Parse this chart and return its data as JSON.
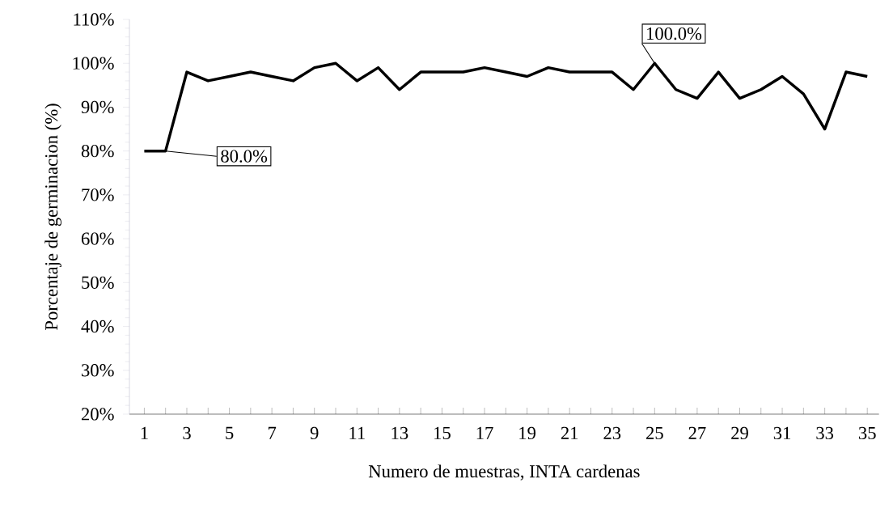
{
  "chart_data": {
    "type": "line",
    "xlabel": "Numero de muestras, INTA cardenas",
    "ylabel": "Porcentaje de germinacion (%)",
    "categories": [
      "1",
      null,
      "3",
      null,
      "5",
      null,
      "7",
      null,
      "9",
      null,
      "11",
      null,
      "13",
      null,
      "15",
      null,
      "17",
      null,
      "19",
      null,
      "21",
      null,
      "23",
      null,
      "25",
      null,
      "27",
      null,
      "29",
      null,
      "31",
      null,
      "33",
      null,
      "35"
    ],
    "series": [
      {
        "color": "#000000",
        "values": [
          80,
          80,
          98,
          96,
          97,
          98,
          97,
          96,
          99,
          100,
          96,
          99,
          94,
          98,
          98,
          98,
          99,
          98,
          97,
          99,
          98,
          98,
          98,
          94,
          100,
          94,
          92,
          98,
          92,
          94,
          97,
          93,
          85,
          98,
          97
        ]
      }
    ],
    "ylim": [
      20,
      110
    ],
    "yticks": [
      {
        "value": 20,
        "label": "20%"
      },
      {
        "value": 30,
        "label": "30%"
      },
      {
        "value": 40,
        "label": "40%"
      },
      {
        "value": 50,
        "label": "50%"
      },
      {
        "value": 60,
        "label": "60%"
      },
      {
        "value": 70,
        "label": "70%"
      },
      {
        "value": 80,
        "label": "80%"
      },
      {
        "value": 90,
        "label": "90%"
      },
      {
        "value": 100,
        "label": "100%"
      },
      {
        "value": 110,
        "label": "110%"
      }
    ],
    "annotations": [
      "80.0%",
      {
        "text": "100.0%",
        "x": "25",
        "y": 100
      }
    ],
    "grid": false,
    "marker": "none",
    "line_style": "solid"
  }
}
